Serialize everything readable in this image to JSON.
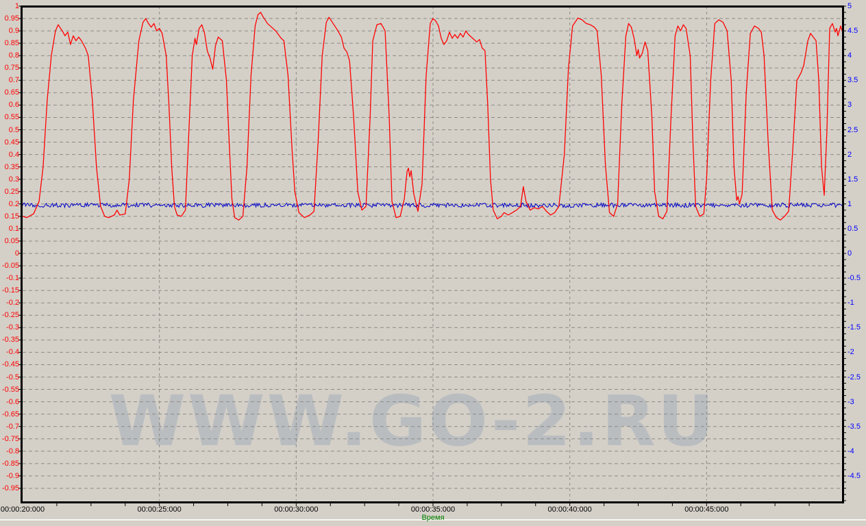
{
  "colors": {
    "background": "#d4d0c8",
    "plot_background": "#d4d0c8",
    "grid": "#8a8a85",
    "border": "#000000",
    "red_series": "#ff0000",
    "blue_series": "#0000c8",
    "left_axis_text": "#ff0000",
    "right_axis_text": "#0000ff",
    "time_text": "#000000",
    "xlabel_text": "#008000",
    "watermark": "#babdc0"
  },
  "watermark": "WWW.GO-2.RU",
  "chart_data": {
    "type": "line",
    "title": "",
    "xlabel": "Время",
    "grid": {
      "horizontal_step": 0.05,
      "vertical_step_seconds": 5,
      "style": "dashed"
    },
    "x_axis": {
      "start_seconds": 20,
      "end_seconds": 50,
      "label_step_seconds": 5,
      "minor_tick_seconds": 1.25,
      "labels": [
        "00:00:20:000",
        "00:00:25:000",
        "00:00:30:000",
        "00:00:35:000",
        "00:00:40:000",
        "00:00:45:000"
      ]
    },
    "left_axis": {
      "min": -1,
      "max": 1,
      "step": 0.05,
      "color": "#ff0000",
      "labels": [
        "1",
        "0.95",
        "0.9",
        "0.85",
        "0.8",
        "0.75",
        "0.7",
        "0.65",
        "0.6",
        "0.55",
        "0.5",
        "0.45",
        "0.4",
        "0.35",
        "0.3",
        "0.25",
        "0.2",
        "0.15",
        "0.1",
        "0.05",
        "0",
        "-0.05",
        "-0.1",
        "-0.15",
        "-0.2",
        "-0.25",
        "-0.3",
        "-0.35",
        "-0.4",
        "-0.45",
        "-0.5",
        "-0.55",
        "-0.6",
        "-0.65",
        "-0.7",
        "-0.75",
        "-0.8",
        "-0.85",
        "-0.9",
        "-0.95"
      ]
    },
    "right_axis": {
      "min": -5,
      "max": 5,
      "step": 0.5,
      "color": "#0000ff",
      "labels": [
        "5",
        "4.5",
        "4",
        "3.5",
        "3",
        "2.5",
        "2",
        "1.5",
        "1",
        "0.5",
        "0",
        "-0.5",
        "-1",
        "-1.5",
        "-2",
        "-2.5",
        "-3",
        "-3.5",
        "-4",
        "-4.5"
      ]
    },
    "series": [
      {
        "name": "red-signal",
        "color": "#ff0000",
        "axis": "left",
        "points": [
          [
            20.0,
            0.15
          ],
          [
            20.15,
            0.145
          ],
          [
            20.4,
            0.16
          ],
          [
            20.6,
            0.21
          ],
          [
            20.75,
            0.35
          ],
          [
            20.9,
            0.62
          ],
          [
            21.05,
            0.8
          ],
          [
            21.2,
            0.9
          ],
          [
            21.3,
            0.925
          ],
          [
            21.45,
            0.9
          ],
          [
            21.55,
            0.88
          ],
          [
            21.65,
            0.895
          ],
          [
            21.75,
            0.845
          ],
          [
            21.85,
            0.88
          ],
          [
            21.95,
            0.86
          ],
          [
            22.05,
            0.875
          ],
          [
            22.15,
            0.86
          ],
          [
            22.3,
            0.83
          ],
          [
            22.4,
            0.8
          ],
          [
            22.55,
            0.62
          ],
          [
            22.7,
            0.35
          ],
          [
            22.85,
            0.19
          ],
          [
            23.0,
            0.15
          ],
          [
            23.15,
            0.145
          ],
          [
            23.35,
            0.155
          ],
          [
            23.45,
            0.175
          ],
          [
            23.55,
            0.155
          ],
          [
            23.75,
            0.16
          ],
          [
            23.9,
            0.3
          ],
          [
            24.05,
            0.62
          ],
          [
            24.25,
            0.86
          ],
          [
            24.4,
            0.935
          ],
          [
            24.5,
            0.95
          ],
          [
            24.6,
            0.93
          ],
          [
            24.7,
            0.915
          ],
          [
            24.8,
            0.93
          ],
          [
            24.9,
            0.9
          ],
          [
            25.0,
            0.91
          ],
          [
            25.1,
            0.89
          ],
          [
            25.25,
            0.8
          ],
          [
            25.35,
            0.6
          ],
          [
            25.45,
            0.35
          ],
          [
            25.55,
            0.19
          ],
          [
            25.65,
            0.155
          ],
          [
            25.8,
            0.15
          ],
          [
            25.95,
            0.175
          ],
          [
            26.1,
            0.55
          ],
          [
            26.2,
            0.8
          ],
          [
            26.3,
            0.87
          ],
          [
            26.35,
            0.845
          ],
          [
            26.45,
            0.91
          ],
          [
            26.55,
            0.925
          ],
          [
            26.65,
            0.89
          ],
          [
            26.75,
            0.82
          ],
          [
            26.85,
            0.79
          ],
          [
            26.95,
            0.745
          ],
          [
            27.05,
            0.84
          ],
          [
            27.15,
            0.875
          ],
          [
            27.3,
            0.86
          ],
          [
            27.45,
            0.7
          ],
          [
            27.55,
            0.45
          ],
          [
            27.65,
            0.22
          ],
          [
            27.75,
            0.145
          ],
          [
            27.9,
            0.135
          ],
          [
            28.05,
            0.15
          ],
          [
            28.2,
            0.35
          ],
          [
            28.35,
            0.72
          ],
          [
            28.5,
            0.92
          ],
          [
            28.6,
            0.965
          ],
          [
            28.7,
            0.975
          ],
          [
            28.8,
            0.955
          ],
          [
            28.95,
            0.93
          ],
          [
            29.1,
            0.915
          ],
          [
            29.25,
            0.9
          ],
          [
            29.35,
            0.885
          ],
          [
            29.45,
            0.87
          ],
          [
            29.55,
            0.86
          ],
          [
            29.7,
            0.72
          ],
          [
            29.85,
            0.42
          ],
          [
            29.95,
            0.25
          ],
          [
            30.1,
            0.165
          ],
          [
            30.3,
            0.145
          ],
          [
            30.5,
            0.155
          ],
          [
            30.65,
            0.17
          ],
          [
            30.8,
            0.45
          ],
          [
            30.95,
            0.8
          ],
          [
            31.1,
            0.935
          ],
          [
            31.2,
            0.955
          ],
          [
            31.35,
            0.93
          ],
          [
            31.5,
            0.905
          ],
          [
            31.65,
            0.875
          ],
          [
            31.75,
            0.83
          ],
          [
            31.85,
            0.815
          ],
          [
            31.95,
            0.78
          ],
          [
            32.1,
            0.55
          ],
          [
            32.25,
            0.25
          ],
          [
            32.4,
            0.175
          ],
          [
            32.55,
            0.19
          ],
          [
            32.7,
            0.55
          ],
          [
            32.8,
            0.86
          ],
          [
            32.95,
            0.925
          ],
          [
            33.1,
            0.93
          ],
          [
            33.25,
            0.9
          ],
          [
            33.4,
            0.55
          ],
          [
            33.5,
            0.21
          ],
          [
            33.65,
            0.145
          ],
          [
            33.8,
            0.15
          ],
          [
            33.95,
            0.22
          ],
          [
            34.05,
            0.33
          ],
          [
            34.1,
            0.345
          ],
          [
            34.15,
            0.31
          ],
          [
            34.2,
            0.335
          ],
          [
            34.3,
            0.24
          ],
          [
            34.45,
            0.17
          ],
          [
            34.6,
            0.28
          ],
          [
            34.75,
            0.72
          ],
          [
            34.9,
            0.93
          ],
          [
            35.0,
            0.95
          ],
          [
            35.1,
            0.94
          ],
          [
            35.2,
            0.92
          ],
          [
            35.3,
            0.87
          ],
          [
            35.4,
            0.845
          ],
          [
            35.5,
            0.86
          ],
          [
            35.6,
            0.895
          ],
          [
            35.7,
            0.87
          ],
          [
            35.8,
            0.885
          ],
          [
            35.9,
            0.87
          ],
          [
            36.0,
            0.89
          ],
          [
            36.1,
            0.875
          ],
          [
            36.2,
            0.9
          ],
          [
            36.3,
            0.885
          ],
          [
            36.45,
            0.87
          ],
          [
            36.6,
            0.855
          ],
          [
            36.7,
            0.865
          ],
          [
            36.8,
            0.83
          ],
          [
            36.9,
            0.82
          ],
          [
            37.0,
            0.6
          ],
          [
            37.1,
            0.3
          ],
          [
            37.2,
            0.175
          ],
          [
            37.35,
            0.14
          ],
          [
            37.5,
            0.15
          ],
          [
            37.6,
            0.165
          ],
          [
            37.75,
            0.155
          ],
          [
            37.9,
            0.165
          ],
          [
            38.05,
            0.175
          ],
          [
            38.2,
            0.19
          ],
          [
            38.3,
            0.27
          ],
          [
            38.4,
            0.21
          ],
          [
            38.55,
            0.175
          ],
          [
            38.7,
            0.185
          ],
          [
            38.85,
            0.18
          ],
          [
            39.0,
            0.19
          ],
          [
            39.15,
            0.17
          ],
          [
            39.3,
            0.155
          ],
          [
            39.45,
            0.165
          ],
          [
            39.6,
            0.19
          ],
          [
            39.8,
            0.4
          ],
          [
            39.95,
            0.75
          ],
          [
            40.1,
            0.92
          ],
          [
            40.3,
            0.952
          ],
          [
            40.45,
            0.945
          ],
          [
            40.6,
            0.93
          ],
          [
            40.75,
            0.925
          ],
          [
            40.9,
            0.915
          ],
          [
            41.0,
            0.9
          ],
          [
            41.15,
            0.72
          ],
          [
            41.3,
            0.36
          ],
          [
            41.45,
            0.165
          ],
          [
            41.6,
            0.15
          ],
          [
            41.75,
            0.2
          ],
          [
            41.9,
            0.6
          ],
          [
            42.05,
            0.88
          ],
          [
            42.15,
            0.93
          ],
          [
            42.25,
            0.915
          ],
          [
            42.35,
            0.87
          ],
          [
            42.45,
            0.8
          ],
          [
            42.5,
            0.825
          ],
          [
            42.55,
            0.79
          ],
          [
            42.65,
            0.81
          ],
          [
            42.75,
            0.855
          ],
          [
            42.85,
            0.82
          ],
          [
            43.0,
            0.55
          ],
          [
            43.1,
            0.25
          ],
          [
            43.25,
            0.15
          ],
          [
            43.4,
            0.14
          ],
          [
            43.55,
            0.17
          ],
          [
            43.7,
            0.55
          ],
          [
            43.85,
            0.88
          ],
          [
            43.95,
            0.92
          ],
          [
            44.05,
            0.9
          ],
          [
            44.15,
            0.925
          ],
          [
            44.25,
            0.91
          ],
          [
            44.4,
            0.8
          ],
          [
            44.5,
            0.45
          ],
          [
            44.6,
            0.19
          ],
          [
            44.75,
            0.15
          ],
          [
            44.9,
            0.16
          ],
          [
            45.0,
            0.3
          ],
          [
            45.15,
            0.7
          ],
          [
            45.3,
            0.93
          ],
          [
            45.45,
            0.945
          ],
          [
            45.6,
            0.935
          ],
          [
            45.75,
            0.9
          ],
          [
            45.9,
            0.7
          ],
          [
            46.0,
            0.35
          ],
          [
            46.1,
            0.215
          ],
          [
            46.15,
            0.23
          ],
          [
            46.2,
            0.2
          ],
          [
            46.3,
            0.24
          ],
          [
            46.45,
            0.65
          ],
          [
            46.6,
            0.89
          ],
          [
            46.75,
            0.92
          ],
          [
            46.9,
            0.91
          ],
          [
            47.0,
            0.895
          ],
          [
            47.1,
            0.8
          ],
          [
            47.25,
            0.45
          ],
          [
            47.4,
            0.175
          ],
          [
            47.55,
            0.145
          ],
          [
            47.7,
            0.135
          ],
          [
            47.85,
            0.15
          ],
          [
            48.0,
            0.17
          ],
          [
            48.15,
            0.42
          ],
          [
            48.3,
            0.7
          ],
          [
            48.45,
            0.73
          ],
          [
            48.55,
            0.76
          ],
          [
            48.7,
            0.86
          ],
          [
            48.8,
            0.89
          ],
          [
            48.9,
            0.875
          ],
          [
            49.0,
            0.86
          ],
          [
            49.1,
            0.7
          ],
          [
            49.2,
            0.35
          ],
          [
            49.3,
            0.235
          ],
          [
            49.4,
            0.5
          ],
          [
            49.5,
            0.91
          ],
          [
            49.6,
            0.93
          ],
          [
            49.7,
            0.895
          ],
          [
            49.75,
            0.91
          ],
          [
            49.8,
            0.88
          ],
          [
            49.9,
            0.92
          ],
          [
            49.95,
            0.9
          ],
          [
            50.0,
            0.935
          ]
        ]
      },
      {
        "name": "blue-signal",
        "color": "#0000c8",
        "axis": "left",
        "baseline": 0.195,
        "noise_amplitude": 0.009
      }
    ]
  }
}
